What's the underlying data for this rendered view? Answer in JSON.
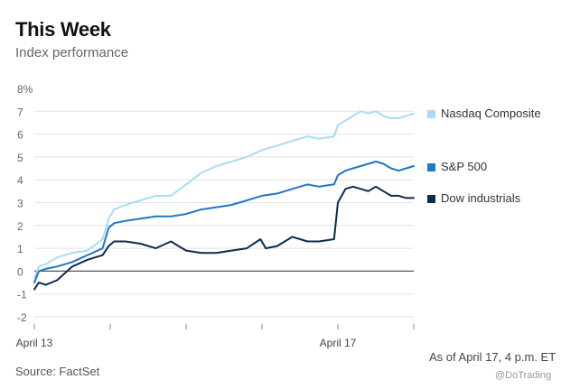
{
  "header": {
    "title": "This Week",
    "subtitle": "Index performance"
  },
  "footer": {
    "note": "As of April 17, 4 p.m. ET",
    "source": "Source: FactSet",
    "watermark": "@DoTrading"
  },
  "chart_data": {
    "type": "line",
    "y_ticks": [
      "-2",
      "-1",
      "0",
      "1",
      "2",
      "3",
      "4",
      "5",
      "6",
      "7",
      "8%"
    ],
    "ylim": [
      -2,
      8
    ],
    "x_labels": [
      {
        "text": "April 13",
        "x": 0
      },
      {
        "text": "April 17",
        "x": 4
      }
    ],
    "x_range": [
      0,
      5
    ],
    "grid": true,
    "legend_position": "right",
    "series": [
      {
        "name": "Nasdaq Composite",
        "color": "#a8dcf4",
        "points": [
          [
            0,
            -0.3
          ],
          [
            0.06,
            0.2
          ],
          [
            0.15,
            0.3
          ],
          [
            0.3,
            0.6
          ],
          [
            0.5,
            0.8
          ],
          [
            0.7,
            0.9
          ],
          [
            0.9,
            1.4
          ],
          [
            0.98,
            2.3
          ],
          [
            1.05,
            2.7
          ],
          [
            1.2,
            2.9
          ],
          [
            1.4,
            3.1
          ],
          [
            1.6,
            3.3
          ],
          [
            1.8,
            3.3
          ],
          [
            2.0,
            3.8
          ],
          [
            2.2,
            4.3
          ],
          [
            2.4,
            4.6
          ],
          [
            2.6,
            4.8
          ],
          [
            2.8,
            5.0
          ],
          [
            3.0,
            5.3
          ],
          [
            3.2,
            5.5
          ],
          [
            3.4,
            5.7
          ],
          [
            3.6,
            5.9
          ],
          [
            3.75,
            5.8
          ],
          [
            3.95,
            5.9
          ],
          [
            4.0,
            6.4
          ],
          [
            4.1,
            6.6
          ],
          [
            4.2,
            6.8
          ],
          [
            4.3,
            7.0
          ],
          [
            4.4,
            6.9
          ],
          [
            4.5,
            7.0
          ],
          [
            4.6,
            6.8
          ],
          [
            4.7,
            6.7
          ],
          [
            4.8,
            6.7
          ],
          [
            4.9,
            6.8
          ],
          [
            5.0,
            6.9
          ]
        ]
      },
      {
        "name": "S&P 500",
        "color": "#2276c4",
        "points": [
          [
            0,
            -0.5
          ],
          [
            0.06,
            0.0
          ],
          [
            0.15,
            0.1
          ],
          [
            0.3,
            0.2
          ],
          [
            0.5,
            0.4
          ],
          [
            0.7,
            0.7
          ],
          [
            0.9,
            1.0
          ],
          [
            0.98,
            1.9
          ],
          [
            1.05,
            2.1
          ],
          [
            1.2,
            2.2
          ],
          [
            1.4,
            2.3
          ],
          [
            1.6,
            2.4
          ],
          [
            1.8,
            2.4
          ],
          [
            2.0,
            2.5
          ],
          [
            2.2,
            2.7
          ],
          [
            2.4,
            2.8
          ],
          [
            2.6,
            2.9
          ],
          [
            2.8,
            3.1
          ],
          [
            3.0,
            3.3
          ],
          [
            3.2,
            3.4
          ],
          [
            3.4,
            3.6
          ],
          [
            3.6,
            3.8
          ],
          [
            3.75,
            3.7
          ],
          [
            3.95,
            3.8
          ],
          [
            4.0,
            4.2
          ],
          [
            4.1,
            4.4
          ],
          [
            4.2,
            4.5
          ],
          [
            4.3,
            4.6
          ],
          [
            4.4,
            4.7
          ],
          [
            4.5,
            4.8
          ],
          [
            4.6,
            4.7
          ],
          [
            4.7,
            4.5
          ],
          [
            4.8,
            4.4
          ],
          [
            4.9,
            4.5
          ],
          [
            5.0,
            4.6
          ]
        ]
      },
      {
        "name": "Dow industrials",
        "color": "#0c2c4c",
        "points": [
          [
            0,
            -0.8
          ],
          [
            0.06,
            -0.5
          ],
          [
            0.15,
            -0.6
          ],
          [
            0.3,
            -0.4
          ],
          [
            0.5,
            0.2
          ],
          [
            0.7,
            0.5
          ],
          [
            0.9,
            0.7
          ],
          [
            0.98,
            1.1
          ],
          [
            1.05,
            1.3
          ],
          [
            1.2,
            1.3
          ],
          [
            1.4,
            1.2
          ],
          [
            1.6,
            1.0
          ],
          [
            1.8,
            1.3
          ],
          [
            1.9,
            1.1
          ],
          [
            2.0,
            0.9
          ],
          [
            2.2,
            0.8
          ],
          [
            2.4,
            0.8
          ],
          [
            2.6,
            0.9
          ],
          [
            2.8,
            1.0
          ],
          [
            2.98,
            1.4
          ],
          [
            3.05,
            1.0
          ],
          [
            3.2,
            1.1
          ],
          [
            3.4,
            1.5
          ],
          [
            3.6,
            1.3
          ],
          [
            3.75,
            1.3
          ],
          [
            3.95,
            1.4
          ],
          [
            4.0,
            3.0
          ],
          [
            4.1,
            3.6
          ],
          [
            4.2,
            3.7
          ],
          [
            4.3,
            3.6
          ],
          [
            4.4,
            3.5
          ],
          [
            4.5,
            3.7
          ],
          [
            4.6,
            3.5
          ],
          [
            4.7,
            3.3
          ],
          [
            4.8,
            3.3
          ],
          [
            4.9,
            3.2
          ],
          [
            5.0,
            3.2
          ]
        ]
      }
    ]
  }
}
